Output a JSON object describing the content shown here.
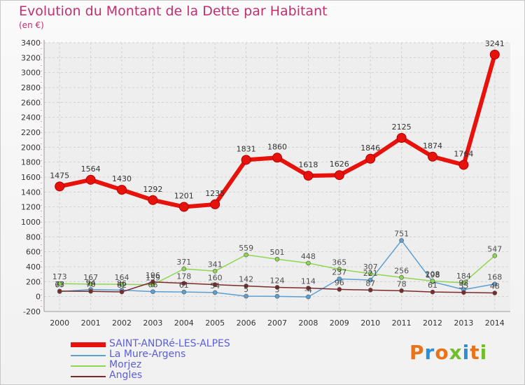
{
  "header": {
    "title": "Evolution du Montant de la Dette par Habitant",
    "subtitle": "(en €)"
  },
  "logo": {
    "text": "Proxiti",
    "colors": [
      "#e8731a",
      "#2a8fd4",
      "#e8731a",
      "#6fbf2a",
      "#2a8fd4",
      "#e8731a",
      "#6fbf2a"
    ]
  },
  "chart_data": {
    "type": "line",
    "title": "Evolution du Montant de la Dette par Habitant",
    "subtitle": "(en €)",
    "x": [
      "2000",
      "2001",
      "2002",
      "2003",
      "2004",
      "2005",
      "2006",
      "2007",
      "2008",
      "2009",
      "2010",
      "2011",
      "2012",
      "2013",
      "2014"
    ],
    "ylim": [
      -200,
      3400
    ],
    "yticks": [
      -200,
      0,
      200,
      400,
      600,
      800,
      1000,
      1200,
      1400,
      1600,
      1800,
      2000,
      2200,
      2400,
      2600,
      2800,
      3000,
      3200,
      3400
    ],
    "grid": true,
    "legend_position": "bottom-left",
    "series": [
      {
        "name": "SAINT-ANDRé-LES-ALPES",
        "color": "#e8120d",
        "width": 6,
        "values": [
          1475,
          1564,
          1430,
          1292,
          1201,
          1235,
          1831,
          1860,
          1618,
          1626,
          1846,
          2125,
          1874,
          1764,
          3241
        ]
      },
      {
        "name": "La Mure-Argens",
        "color": "#5b9fd3",
        "width": 1.5,
        "values": [
          67,
          94,
          86,
          66,
          61,
          54,
          5,
          3,
          -4,
          237,
          221,
          751,
          198,
          93,
          168
        ]
      },
      {
        "name": "Morjez",
        "color": "#8fd650",
        "width": 1.5,
        "values": [
          173,
          167,
          164,
          159,
          371,
          341,
          559,
          501,
          448,
          365,
          307,
          256,
          208,
          184,
          547
        ]
      },
      {
        "name": "Angles",
        "color": "#7b2a2a",
        "width": 1.5,
        "values": [
          73,
          70,
          62,
          196,
          178,
          160,
          142,
          124,
          114,
          96,
          87,
          78,
          61,
          55,
          48
        ]
      }
    ]
  }
}
